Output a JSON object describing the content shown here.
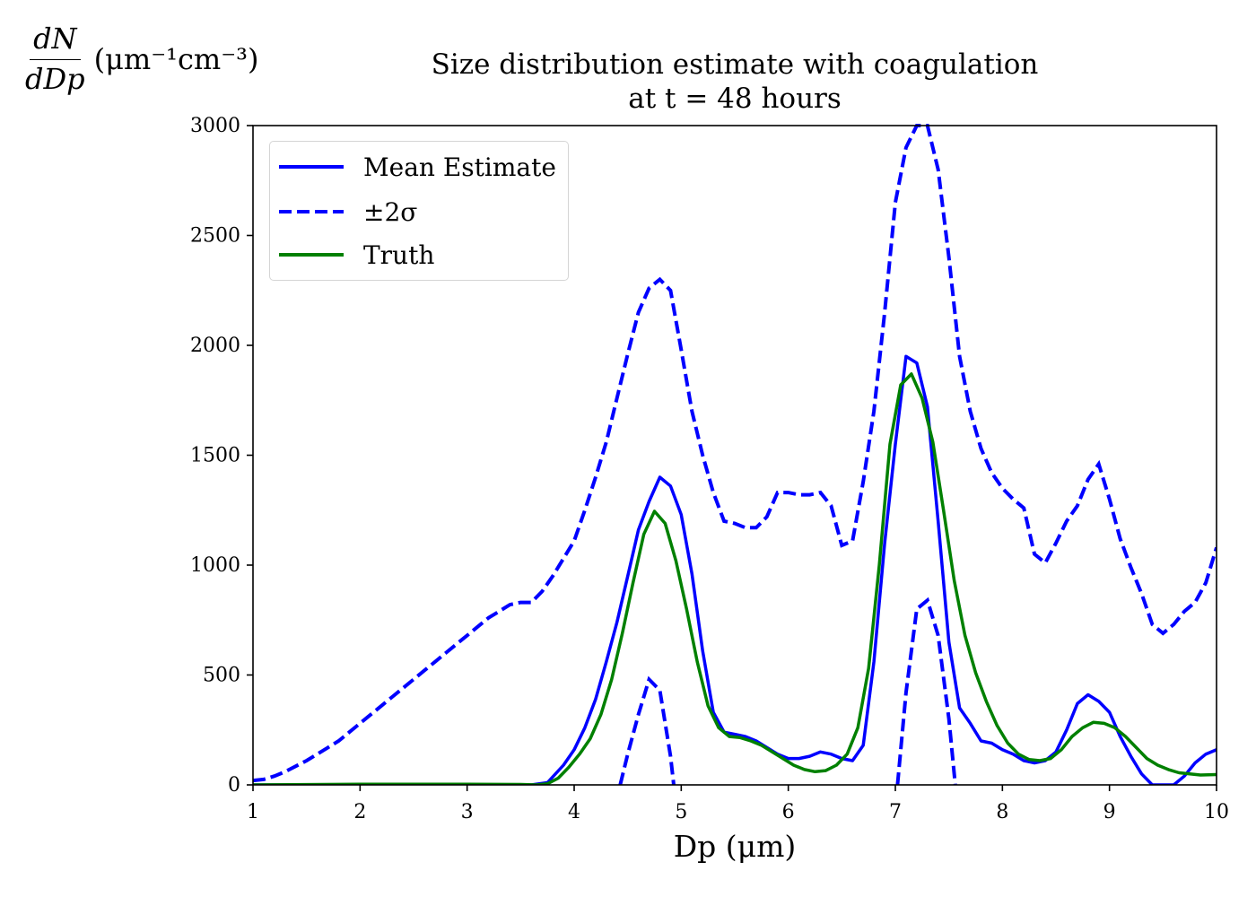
{
  "title_line1": "Size distribution estimate with coagulation",
  "title_line2": "at t = 48 hours",
  "ylabel_num": "dN",
  "ylabel_den": "dDp",
  "ylabel_unit": "(μm⁻¹cm⁻³)",
  "xlabel": "Dp (μm)",
  "colors": {
    "mean": "#0000ff",
    "sigma": "#0000ff",
    "truth": "#008000"
  },
  "chart_data": {
    "type": "line",
    "title": "Size distribution estimate with coagulation at t = 48 hours",
    "xlabel": "Dp (μm)",
    "ylabel": "dN/dDp (μm⁻¹cm⁻³)",
    "xlim": [
      1,
      10
    ],
    "ylim": [
      0,
      3000
    ],
    "xticks": [
      "1",
      "2",
      "3",
      "4",
      "5",
      "6",
      "7",
      "8",
      "9",
      "10"
    ],
    "yticks": [
      "0",
      "500",
      "1000",
      "1500",
      "2000",
      "2500",
      "3000"
    ],
    "grid": false,
    "legend_position": "top-left",
    "series": [
      {
        "name": "Mean Estimate",
        "style": "solid",
        "color": "#0000ff",
        "x": [
          1.0,
          3.0,
          3.6,
          3.75,
          3.9,
          4.0,
          4.1,
          4.2,
          4.3,
          4.4,
          4.5,
          4.6,
          4.7,
          4.8,
          4.9,
          5.0,
          5.1,
          5.2,
          5.3,
          5.4,
          5.5,
          5.6,
          5.7,
          5.8,
          5.9,
          6.0,
          6.1,
          6.2,
          6.3,
          6.4,
          6.5,
          6.6,
          6.7,
          6.8,
          6.9,
          7.0,
          7.1,
          7.2,
          7.3,
          7.4,
          7.5,
          7.6,
          7.7,
          7.8,
          7.9,
          8.0,
          8.1,
          8.2,
          8.3,
          8.4,
          8.5,
          8.6,
          8.7,
          8.8,
          8.9,
          9.0,
          9.1,
          9.2,
          9.3,
          9.4,
          9.5,
          9.6,
          9.7,
          9.8,
          9.9,
          10.0
        ],
        "y": [
          0,
          0,
          0,
          10,
          90,
          160,
          260,
          390,
          560,
          740,
          950,
          1160,
          1290,
          1400,
          1360,
          1230,
          960,
          610,
          330,
          240,
          230,
          220,
          200,
          170,
          140,
          120,
          120,
          130,
          150,
          140,
          120,
          110,
          180,
          560,
          1100,
          1550,
          1950,
          1920,
          1720,
          1200,
          650,
          350,
          280,
          200,
          190,
          160,
          140,
          110,
          100,
          110,
          150,
          250,
          370,
          410,
          380,
          330,
          220,
          130,
          50,
          0,
          0,
          0,
          40,
          100,
          140,
          160
        ]
      },
      {
        "name": "±2σ",
        "style": "dashed",
        "color": "#0000ff",
        "x": [
          1.0,
          1.1,
          1.2,
          1.3,
          1.4,
          1.5,
          1.6,
          1.7,
          1.8,
          1.9,
          2.0,
          2.1,
          2.2,
          2.3,
          2.4,
          2.5,
          2.6,
          2.7,
          2.8,
          2.9,
          3.0,
          3.1,
          3.2,
          3.3,
          3.4,
          3.5,
          3.6,
          3.7,
          3.8,
          3.9,
          4.0,
          4.1,
          4.2,
          4.3,
          4.4,
          4.5,
          4.6,
          4.7,
          4.8,
          4.9,
          5.0,
          5.1,
          5.2,
          5.3,
          5.4,
          5.5,
          5.6,
          5.7,
          5.8,
          5.9,
          6.0,
          6.1,
          6.2,
          6.3,
          6.4,
          6.5,
          6.6,
          6.7,
          6.8,
          6.9,
          7.0,
          7.1,
          7.2,
          7.3,
          7.4,
          7.5,
          7.6,
          7.7,
          7.8,
          7.9,
          8.0,
          8.1,
          8.2,
          8.3,
          8.4,
          8.5,
          8.6,
          8.7,
          8.8,
          8.9,
          9.0,
          9.1,
          9.2,
          9.3,
          9.4,
          9.5,
          9.6,
          9.7,
          9.8,
          9.9,
          10.0
        ],
        "y": [
          20,
          25,
          40,
          60,
          85,
          110,
          140,
          170,
          200,
          240,
          280,
          320,
          360,
          400,
          440,
          480,
          520,
          560,
          600,
          640,
          680,
          720,
          760,
          790,
          820,
          830,
          830,
          880,
          950,
          1030,
          1110,
          1250,
          1400,
          1560,
          1760,
          1960,
          2150,
          2260,
          2300,
          2250,
          1980,
          1700,
          1500,
          1330,
          1200,
          1190,
          1170,
          1170,
          1220,
          1330,
          1330,
          1320,
          1320,
          1330,
          1270,
          1090,
          1110,
          1380,
          1700,
          2150,
          2650,
          2900,
          3000,
          3000,
          2800,
          2400,
          1950,
          1700,
          1530,
          1420,
          1350,
          1300,
          1260,
          1050,
          1010,
          1100,
          1200,
          1270,
          1390,
          1460,
          1300,
          1120,
          990,
          870,
          730,
          690,
          730,
          790,
          830,
          920,
          1080
        ],
        "lower_x": [
          4.43,
          4.5,
          4.6,
          4.7,
          4.8,
          4.9,
          4.93,
          7.02,
          7.1,
          7.2,
          7.3,
          7.4,
          7.5,
          7.56
        ],
        "lower_y": [
          0,
          140,
          320,
          480,
          430,
          130,
          0,
          0,
          420,
          800,
          840,
          680,
          300,
          0
        ]
      },
      {
        "name": "Truth",
        "style": "solid",
        "color": "#008000",
        "x": [
          1.0,
          2.0,
          3.0,
          3.5,
          3.65,
          3.75,
          3.85,
          3.95,
          4.05,
          4.15,
          4.25,
          4.35,
          4.45,
          4.55,
          4.65,
          4.75,
          4.85,
          4.95,
          5.05,
          5.15,
          5.25,
          5.35,
          5.45,
          5.55,
          5.65,
          5.75,
          5.85,
          5.95,
          6.05,
          6.15,
          6.25,
          6.35,
          6.45,
          6.55,
          6.65,
          6.75,
          6.85,
          6.95,
          7.05,
          7.15,
          7.25,
          7.35,
          7.45,
          7.55,
          7.65,
          7.75,
          7.85,
          7.95,
          8.05,
          8.15,
          8.25,
          8.35,
          8.45,
          8.55,
          8.65,
          8.75,
          8.85,
          8.95,
          9.05,
          9.15,
          9.25,
          9.35,
          9.45,
          9.55,
          9.65,
          9.75,
          9.85,
          10.0
        ],
        "y": [
          0,
          3,
          3,
          2,
          0,
          5,
          30,
          80,
          140,
          210,
          320,
          480,
          690,
          920,
          1140,
          1245,
          1190,
          1020,
          800,
          560,
          360,
          260,
          220,
          215,
          200,
          180,
          150,
          120,
          90,
          70,
          60,
          65,
          90,
          140,
          260,
          530,
          1000,
          1550,
          1820,
          1870,
          1760,
          1560,
          1250,
          930,
          680,
          510,
          380,
          270,
          190,
          140,
          115,
          110,
          120,
          160,
          220,
          260,
          285,
          280,
          260,
          220,
          170,
          120,
          90,
          70,
          55,
          50,
          45,
          47
        ]
      }
    ]
  }
}
